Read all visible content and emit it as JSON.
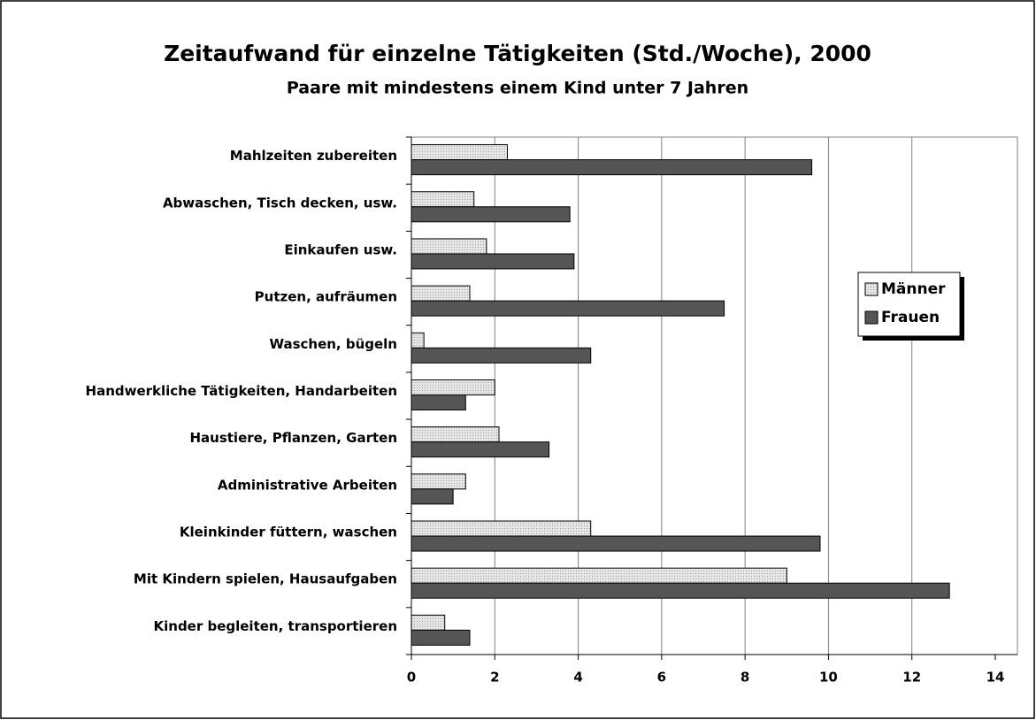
{
  "chart_data": {
    "type": "hbar",
    "title": "Zeitaufwand für einzelne Tätigkeiten (Std./Woche), 2000",
    "subtitle": "Paare mit mindestens einem Kind unter 7 Jahren",
    "categories": [
      "Mahlzeiten zubereiten",
      "Abwaschen, Tisch decken, usw.",
      "Einkaufen usw.",
      "Putzen, aufräumen",
      "Waschen, bügeln",
      "Handwerkliche Tätigkeiten, Handarbeiten",
      "Haustiere, Pflanzen, Garten",
      "Administrative Arbeiten",
      "Kleinkinder füttern, waschen",
      "Mit Kindern spielen, Hausaufgaben",
      "Kinder begleiten, transportieren"
    ],
    "series": [
      {
        "name": "Männer",
        "color": "#d4d4d4",
        "values": [
          2.3,
          1.5,
          1.8,
          1.4,
          0.3,
          2.0,
          2.1,
          1.3,
          4.3,
          9.0,
          0.8
        ]
      },
      {
        "name": "Frauen",
        "color": "#555555",
        "values": [
          9.6,
          3.8,
          3.9,
          7.5,
          4.3,
          1.3,
          3.3,
          1.0,
          9.8,
          12.9,
          1.4
        ]
      }
    ],
    "xlim": [
      0,
      14
    ],
    "xticks": [
      0,
      2,
      4,
      6,
      8,
      10,
      12,
      14
    ],
    "grid": true,
    "legend": "right"
  }
}
